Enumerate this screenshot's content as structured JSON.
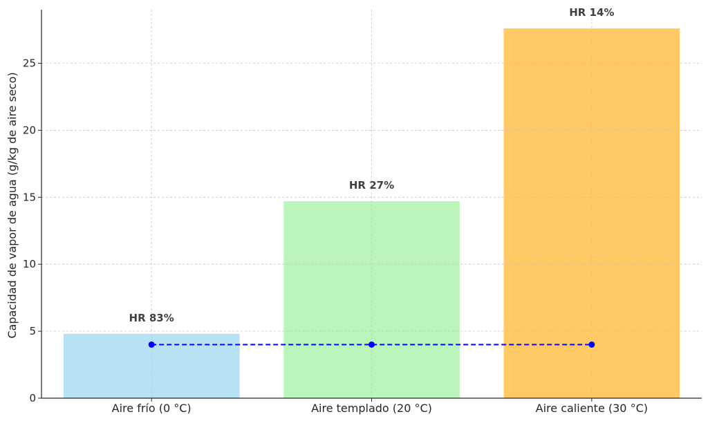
{
  "chart_data": {
    "type": "bar",
    "title": "",
    "xlabel": "",
    "ylabel": "Capacidad de vapor de agua (g/kg de aire seco)",
    "categories": [
      "Aire frío (0 °C)",
      "Aire templado (20 °C)",
      "Aire caliente (30 °C)"
    ],
    "values": [
      4.8,
      14.7,
      27.6
    ],
    "bar_colors": [
      "#87CEEB",
      "#90EE90",
      "#FFA500"
    ],
    "bar_opacity": 0.6,
    "bar_labels": [
      "HR 83%",
      "HR 27%",
      "HR 14%"
    ],
    "line_series": {
      "values": [
        4.0,
        4.0,
        4.0
      ],
      "color": "#0000FF",
      "style": "dashed",
      "marker": "circle"
    },
    "ylim": [
      0,
      29
    ],
    "yticks": [
      0,
      5,
      10,
      15,
      20,
      25
    ],
    "grid": true
  }
}
